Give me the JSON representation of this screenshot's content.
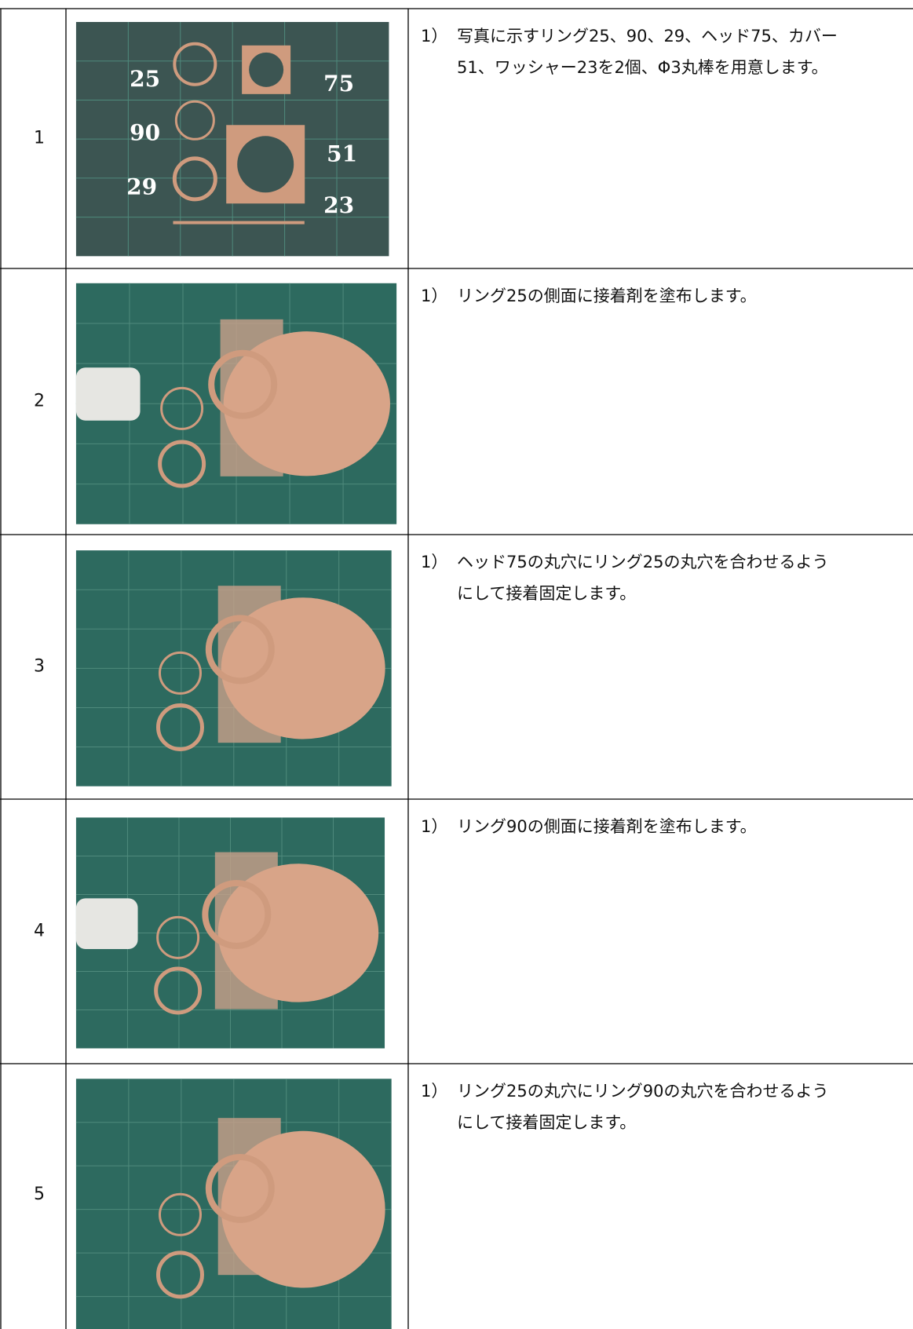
{
  "table": {
    "rows": [
      {
        "number": "1",
        "marker": "1）",
        "lines": [
          "写真に示すリング25、90、29、ヘッド75、カバー",
          "51、ワッシャー23を2個、Φ3丸棒を用意します。"
        ],
        "photo_labels": [
          "25",
          "75",
          "90",
          "51",
          "29",
          "23"
        ]
      },
      {
        "number": "2",
        "marker": "1）",
        "lines": [
          "リング25の側面に接着剤を塗布します。"
        ]
      },
      {
        "number": "3",
        "marker": "1）",
        "lines": [
          "ヘッド75の丸穴にリング25の丸穴を合わせるよう",
          "にして接着固定します。"
        ]
      },
      {
        "number": "4",
        "marker": "1）",
        "lines": [
          "リング90の側面に接着剤を塗布します。"
        ]
      },
      {
        "number": "5",
        "marker": "1）",
        "lines": [
          "リング25の丸穴にリング90の丸穴を合わせるよう",
          "にして接着固定します。"
        ]
      }
    ]
  }
}
